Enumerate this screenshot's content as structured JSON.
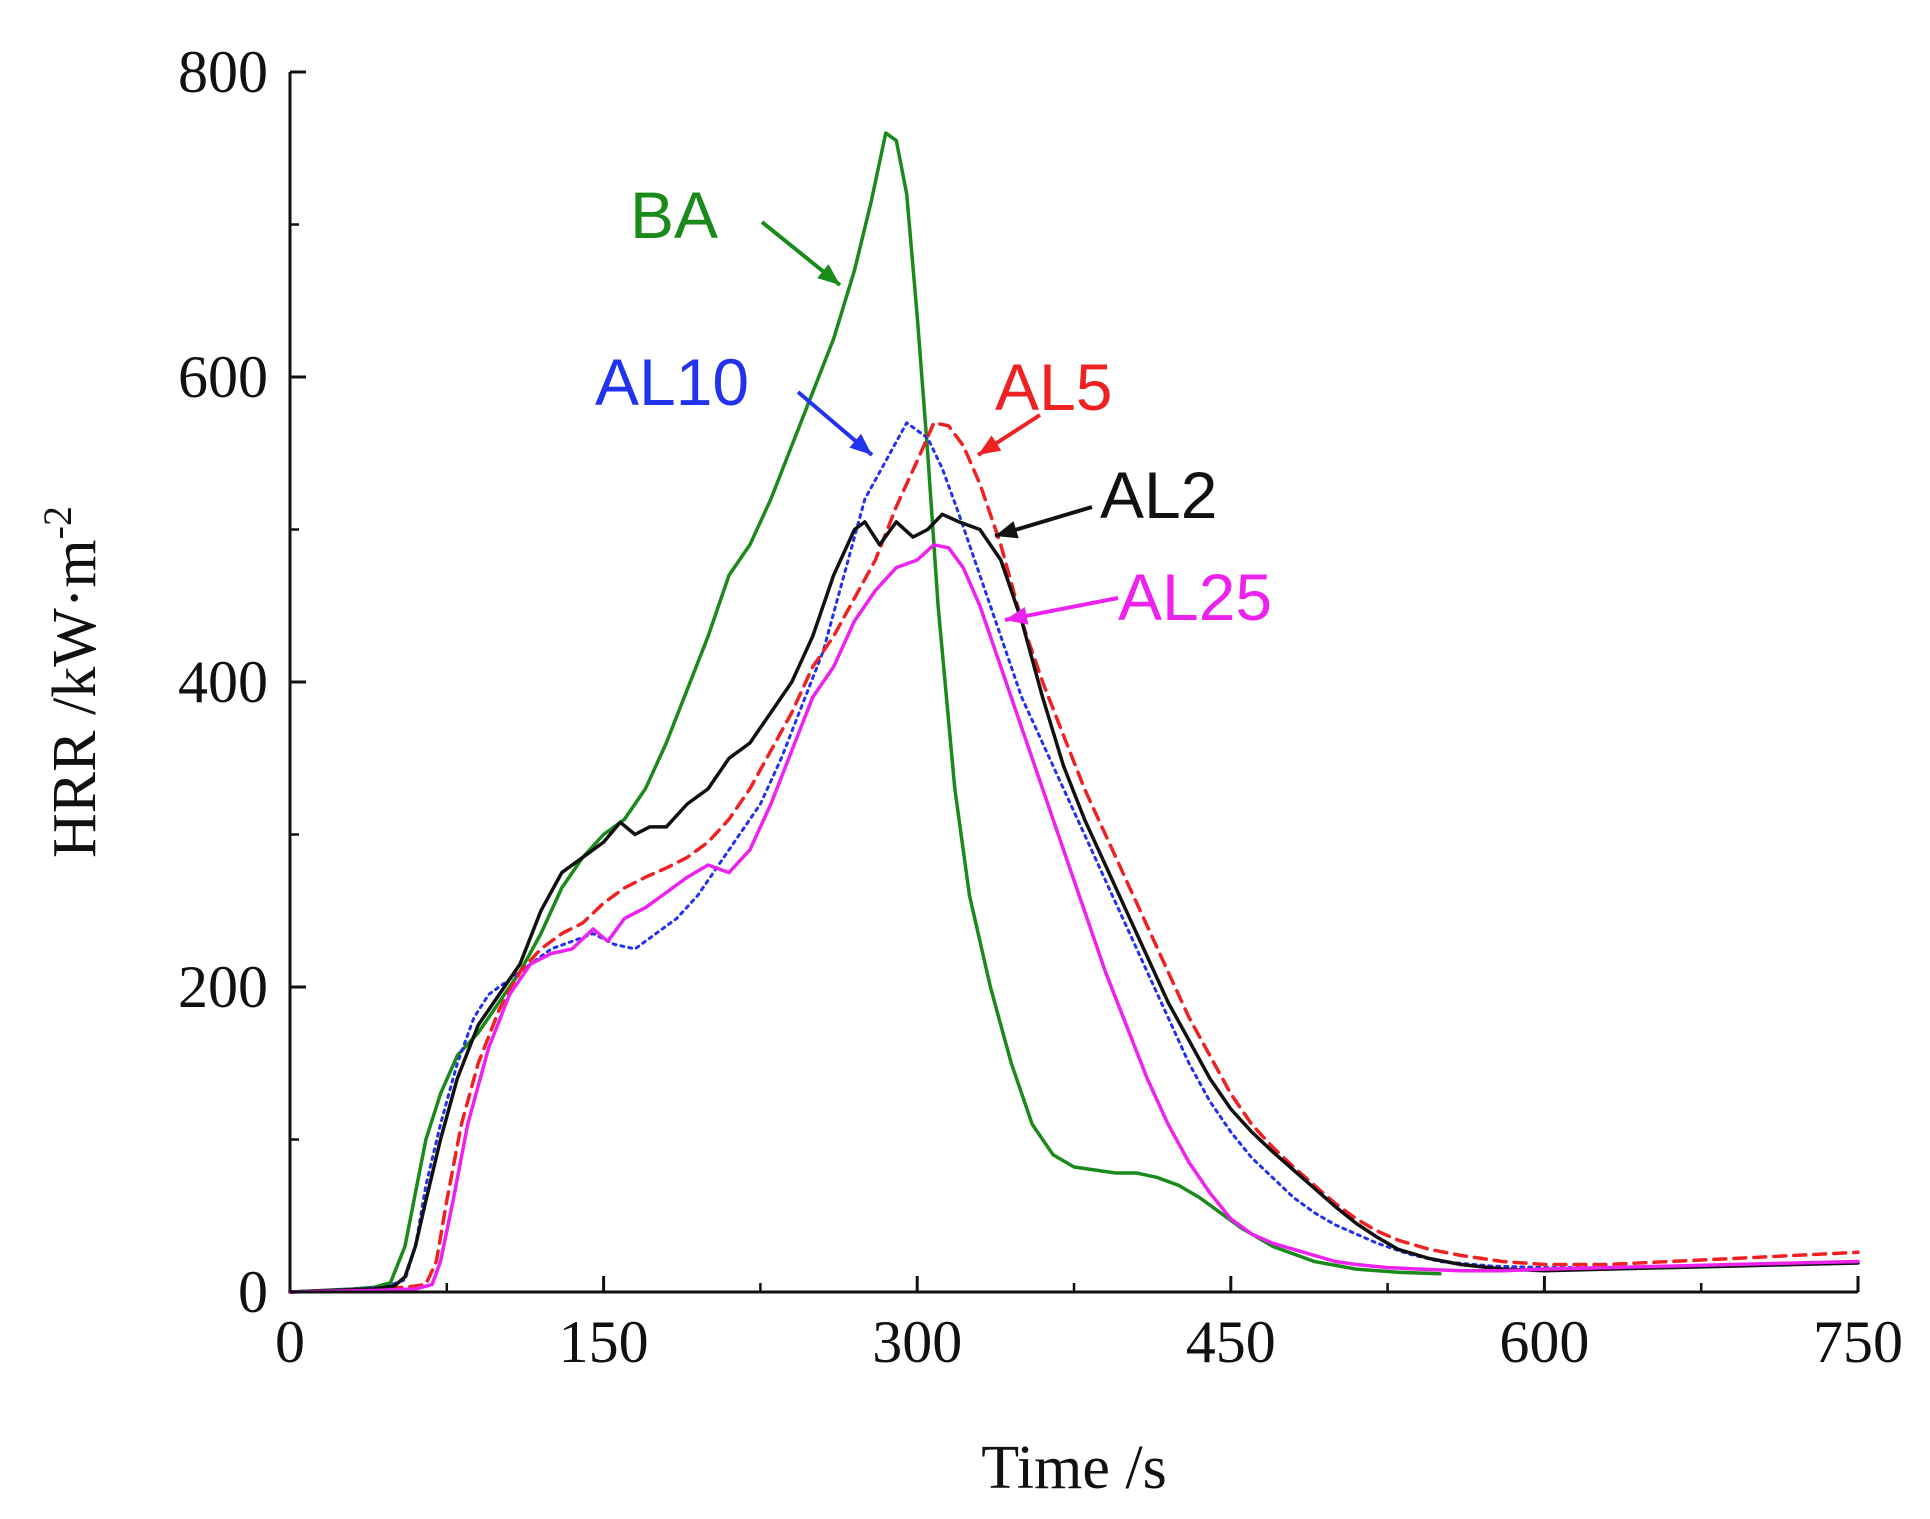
{
  "chart_data": {
    "type": "line",
    "title": "",
    "xlabel": "Time /s",
    "ylabel_main": "HRR /kW·m",
    "ylabel_sup": "-2",
    "xlim": [
      0,
      750
    ],
    "ylim": [
      0,
      800
    ],
    "xticks": [
      0,
      150,
      300,
      450,
      600,
      750
    ],
    "xtick_labels": [
      "0",
      "150",
      "300",
      "450",
      "600",
      "750"
    ],
    "yticks": [
      0,
      200,
      400,
      600,
      800
    ],
    "ytick_labels": [
      "0",
      "200",
      "400",
      "600",
      "800"
    ],
    "grid": false,
    "series": [
      {
        "name": "BA",
        "color": "#1a8a1a",
        "dash": "solid",
        "label_text": "BA",
        "x": [
          0,
          30,
          40,
          48,
          55,
          60,
          65,
          72,
          80,
          90,
          100,
          110,
          120,
          130,
          140,
          150,
          160,
          170,
          180,
          190,
          200,
          210,
          220,
          230,
          240,
          250,
          260,
          270,
          278,
          285,
          290,
          295,
          300,
          305,
          310,
          318,
          325,
          335,
          345,
          355,
          365,
          375,
          385,
          395,
          405,
          415,
          425,
          435,
          445,
          455,
          470,
          490,
          510,
          530,
          550
        ],
        "y": [
          0,
          2,
          3,
          6,
          30,
          65,
          100,
          130,
          155,
          170,
          190,
          210,
          235,
          265,
          285,
          300,
          310,
          330,
          360,
          395,
          430,
          470,
          490,
          520,
          555,
          590,
          625,
          670,
          715,
          760,
          755,
          720,
          640,
          550,
          450,
          330,
          260,
          200,
          150,
          110,
          90,
          82,
          80,
          78,
          78,
          75,
          70,
          62,
          52,
          42,
          30,
          20,
          15,
          13,
          12
        ]
      },
      {
        "name": "AL10",
        "color": "#2233ee",
        "dash": "dotted",
        "label_text": "AL10",
        "x": [
          0,
          30,
          45,
          55,
          60,
          65,
          72,
          80,
          88,
          95,
          105,
          115,
          125,
          135,
          145,
          155,
          165,
          175,
          185,
          195,
          205,
          215,
          225,
          235,
          245,
          255,
          265,
          275,
          285,
          295,
          305,
          312,
          320,
          330,
          340,
          350,
          360,
          370,
          380,
          390,
          400,
          410,
          420,
          430,
          440,
          450,
          460,
          470,
          480,
          490,
          500,
          510,
          520,
          535,
          550,
          575,
          600,
          630,
          660,
          690,
          720,
          750
        ],
        "y": [
          0,
          2,
          3,
          8,
          30,
          70,
          110,
          150,
          180,
          195,
          205,
          215,
          225,
          230,
          235,
          228,
          225,
          235,
          245,
          260,
          280,
          300,
          320,
          350,
          385,
          420,
          470,
          520,
          545,
          570,
          560,
          540,
          510,
          470,
          430,
          390,
          360,
          330,
          300,
          270,
          240,
          210,
          180,
          150,
          125,
          105,
          88,
          75,
          62,
          52,
          44,
          38,
          32,
          25,
          20,
          17,
          16,
          16,
          17,
          18,
          19,
          19
        ]
      },
      {
        "name": "AL5",
        "color": "#ee2222",
        "dash": "dashed",
        "label_text": "AL5",
        "x": [
          0,
          40,
          55,
          65,
          70,
          75,
          82,
          90,
          100,
          110,
          120,
          130,
          140,
          150,
          160,
          170,
          180,
          190,
          200,
          210,
          220,
          230,
          240,
          250,
          260,
          270,
          280,
          290,
          300,
          308,
          315,
          322,
          330,
          340,
          350,
          360,
          370,
          380,
          390,
          400,
          410,
          420,
          430,
          440,
          450,
          460,
          470,
          480,
          490,
          500,
          510,
          520,
          530,
          545,
          560,
          580,
          600,
          630,
          660,
          690,
          720,
          750
        ],
        "y": [
          0,
          2,
          3,
          5,
          20,
          60,
          110,
          150,
          185,
          210,
          225,
          235,
          242,
          255,
          265,
          272,
          278,
          285,
          295,
          310,
          330,
          355,
          380,
          410,
          430,
          455,
          480,
          515,
          545,
          570,
          568,
          555,
          530,
          490,
          440,
          400,
          365,
          330,
          300,
          270,
          240,
          210,
          180,
          155,
          130,
          110,
          95,
          82,
          70,
          58,
          48,
          40,
          34,
          28,
          24,
          20,
          18,
          18,
          20,
          22,
          24,
          26
        ]
      },
      {
        "name": "AL2",
        "color": "#111111",
        "dash": "solid",
        "label_text": "AL2",
        "x": [
          0,
          40,
          50,
          55,
          60,
          65,
          72,
          80,
          90,
          100,
          110,
          120,
          130,
          140,
          150,
          158,
          165,
          172,
          180,
          190,
          200,
          210,
          220,
          230,
          240,
          250,
          260,
          270,
          275,
          282,
          290,
          298,
          305,
          312,
          320,
          330,
          340,
          350,
          360,
          370,
          380,
          390,
          400,
          410,
          420,
          430,
          440,
          450,
          460,
          470,
          480,
          490,
          500,
          510,
          520,
          530,
          545,
          560,
          580,
          600,
          630,
          660,
          690,
          720,
          750
        ],
        "y": [
          0,
          2,
          4,
          10,
          30,
          60,
          100,
          140,
          175,
          195,
          215,
          250,
          275,
          285,
          295,
          308,
          300,
          305,
          305,
          320,
          330,
          350,
          360,
          380,
          400,
          430,
          470,
          500,
          505,
          490,
          505,
          495,
          500,
          510,
          505,
          500,
          480,
          440,
          390,
          345,
          310,
          280,
          250,
          220,
          190,
          165,
          140,
          120,
          105,
          92,
          80,
          68,
          56,
          45,
          36,
          28,
          22,
          18,
          15,
          14,
          15,
          16,
          17,
          18,
          19
        ]
      },
      {
        "name": "AL25",
        "color": "#ee22ee",
        "dash": "solid",
        "label_text": "AL25",
        "x": [
          0,
          40,
          60,
          68,
          72,
          78,
          85,
          95,
          105,
          115,
          125,
          135,
          145,
          152,
          160,
          170,
          180,
          190,
          200,
          210,
          220,
          230,
          240,
          250,
          260,
          270,
          280,
          290,
          300,
          308,
          315,
          322,
          330,
          340,
          350,
          360,
          370,
          380,
          390,
          400,
          410,
          420,
          430,
          440,
          450,
          460,
          470,
          480,
          490,
          500,
          510,
          525,
          540,
          560,
          580,
          600,
          630,
          660,
          690,
          720,
          750
        ],
        "y": [
          0,
          1,
          2,
          5,
          20,
          60,
          110,
          160,
          195,
          215,
          222,
          225,
          238,
          230,
          245,
          252,
          262,
          272,
          280,
          275,
          290,
          320,
          355,
          390,
          410,
          440,
          460,
          475,
          480,
          490,
          488,
          475,
          450,
          410,
          370,
          330,
          290,
          250,
          210,
          175,
          140,
          110,
          85,
          65,
          48,
          38,
          32,
          28,
          24,
          20,
          18,
          16,
          15,
          14,
          14,
          15,
          16,
          17,
          18,
          19,
          20
        ]
      }
    ],
    "annotations": [
      {
        "series": "BA",
        "text": "BA"
      },
      {
        "series": "AL10",
        "text": "AL10"
      },
      {
        "series": "AL5",
        "text": "AL5"
      },
      {
        "series": "AL2",
        "text": "AL2"
      },
      {
        "series": "AL25",
        "text": "AL25"
      }
    ]
  }
}
